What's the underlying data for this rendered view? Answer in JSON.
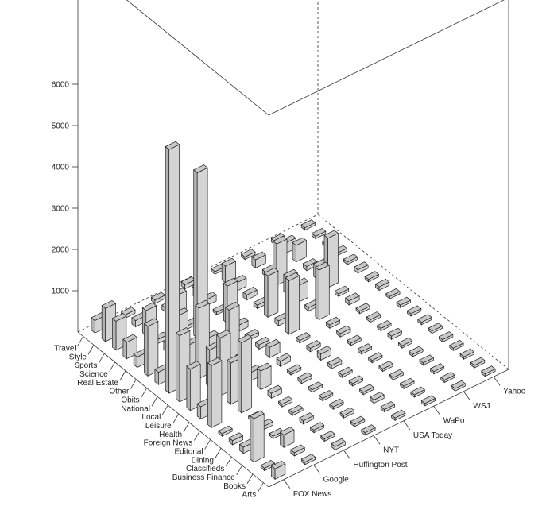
{
  "chart_data": {
    "type": "bar3d",
    "title": "",
    "xlabel": "",
    "ylabel": "",
    "zlabel": "",
    "zlim": [
      0,
      6000
    ],
    "z_ticks": [
      1000,
      2000,
      3000,
      4000,
      5000,
      6000
    ],
    "grid": false,
    "legend": "none",
    "bar_color": "#c8c8c8",
    "sections": [
      "Arts",
      "Books",
      "Business Finance",
      "Classifieds",
      "Dining",
      "Editorial",
      "Foreign News",
      "Health",
      "Leisure",
      "Local",
      "National",
      "Obits",
      "Other",
      "Real Estate",
      "Science",
      "Sports",
      "Style",
      "Travel"
    ],
    "sources": [
      "FOX News",
      "Google",
      "Huffington Post",
      "NYT",
      "USA Today",
      "WaPo",
      "WSJ",
      "Yahoo"
    ],
    "values": [
      [
        250,
        60,
        80,
        60,
        60,
        40,
        60,
        60
      ],
      [
        60,
        80,
        40,
        40,
        50,
        40,
        40,
        50
      ],
      [
        1050,
        300,
        60,
        60,
        80,
        50,
        40,
        40
      ],
      [
        150,
        60,
        80,
        60,
        40,
        40,
        40,
        40
      ],
      [
        100,
        80,
        60,
        40,
        60,
        50,
        40,
        40
      ],
      [
        60,
        40,
        60,
        50,
        40,
        40,
        40,
        40
      ],
      [
        1500,
        1700,
        120,
        80,
        80,
        60,
        80,
        60
      ],
      [
        300,
        1000,
        450,
        60,
        150,
        60,
        40,
        60
      ],
      [
        1000,
        1400,
        200,
        120,
        80,
        80,
        60,
        40
      ],
      [
        1600,
        900,
        350,
        250,
        60,
        80,
        60,
        40
      ],
      [
        5900,
        1700,
        1300,
        100,
        1300,
        1200,
        100,
        80
      ],
      [
        300,
        600,
        100,
        80,
        120,
        80,
        60,
        40
      ],
      [
        1200,
        1100,
        200,
        150,
        1000,
        400,
        1200,
        80
      ],
      [
        250,
        200,
        4000,
        900,
        80,
        400,
        300,
        60
      ],
      [
        400,
        100,
        80,
        60,
        120,
        1000,
        100,
        60
      ],
      [
        700,
        600,
        600,
        150,
        200,
        100,
        400,
        40
      ],
      [
        800,
        150,
        100,
        200,
        400,
        200,
        250,
        60
      ],
      [
        300,
        80,
        80,
        100,
        60,
        60,
        80,
        40
      ]
    ]
  }
}
